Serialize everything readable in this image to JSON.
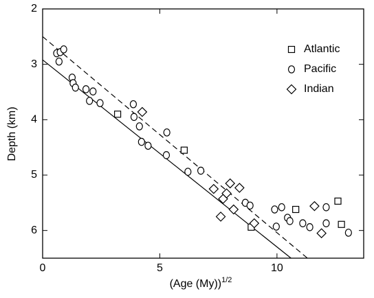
{
  "chart_data": {
    "type": "scatter",
    "xlabel": "(Age (My))",
    "xlabel_superscript": "1/2",
    "ylabel": "Depth (km)",
    "xlim": [
      0,
      13.7
    ],
    "ylim": [
      2,
      6.5
    ],
    "y_inverted": true,
    "xticks": [
      0,
      5,
      10
    ],
    "yticks": [
      2,
      3,
      4,
      5,
      6
    ],
    "legend": "upper right",
    "series": [
      {
        "name": "Atlantic",
        "marker": "square",
        "color": "#000000",
        "x": [
          3.2,
          6.04,
          10.8,
          8.9,
          12.6,
          12.75
        ],
        "values": [
          3.9,
          4.55,
          5.62,
          5.94,
          5.47,
          5.89
        ]
      },
      {
        "name": "Pacific",
        "marker": "circle",
        "color": "#000000",
        "x": [
          0.6,
          0.7,
          0.75,
          0.9,
          1.26,
          1.3,
          1.4,
          1.85,
          2.15,
          2.0,
          2.45,
          3.87,
          3.9,
          4.13,
          4.22,
          4.5,
          5.3,
          5.28,
          6.2,
          6.75,
          8.65,
          8.85,
          9.9,
          10.2,
          9.97,
          10.45,
          10.55,
          11.1,
          11.4,
          12.1,
          12.1,
          13.05
        ],
        "values": [
          2.8,
          2.95,
          2.78,
          2.73,
          3.24,
          3.34,
          3.42,
          3.45,
          3.49,
          3.66,
          3.7,
          3.72,
          3.95,
          4.12,
          4.4,
          4.47,
          4.23,
          4.64,
          4.94,
          4.92,
          5.5,
          5.55,
          5.62,
          5.58,
          5.93,
          5.77,
          5.83,
          5.87,
          5.94,
          5.58,
          5.87,
          6.04
        ]
      },
      {
        "name": "Indian",
        "marker": "diamond",
        "color": "#000000",
        "x": [
          4.25,
          7.3,
          7.7,
          7.6,
          7.85,
          8.0,
          8.15,
          8.4,
          9.03,
          11.6,
          11.9
        ],
        "values": [
          3.86,
          5.25,
          5.43,
          5.75,
          5.33,
          5.15,
          5.62,
          5.23,
          5.87,
          5.56,
          6.05
        ]
      }
    ],
    "lines": [
      {
        "style": "solid",
        "x": [
          0,
          10.6
        ],
        "values": [
          2.92,
          6.5
        ]
      },
      {
        "style": "dashed",
        "x": [
          0,
          11.3
        ],
        "values": [
          2.5,
          6.5
        ]
      }
    ]
  }
}
